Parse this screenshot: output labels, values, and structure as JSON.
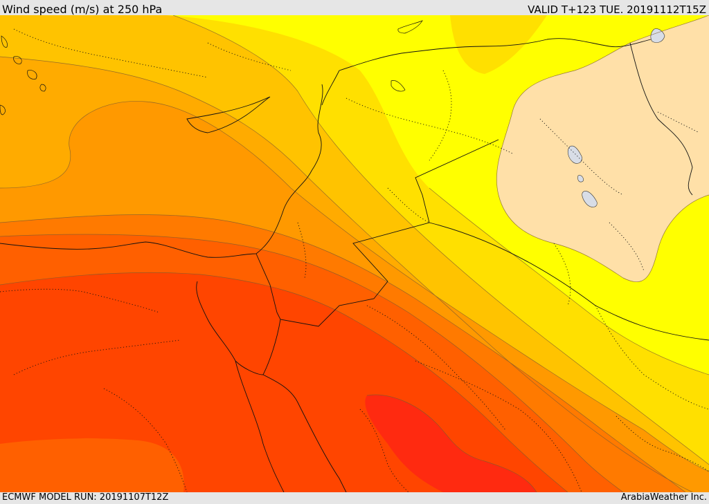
{
  "header": {
    "title": "Wind speed (m/s) at 250 hPa",
    "valid_time": "VALID T+123 TUE. 20191112T15Z"
  },
  "footer": {
    "model_run": "ECMWF MODEL RUN: 20191107T12Z",
    "credit": "ArabiaWeather Inc."
  },
  "map": {
    "fill_colors": {
      "calm_tan": "#ffe0a8",
      "bright_yellow": "#ffff00",
      "yellow": "#ffe000",
      "light_orange": "#ffc300",
      "orange": "#ffab00",
      "dark_orange": "#ff9900",
      "orange_red": "#ff7a00",
      "red_orange": "#ff6000",
      "red": "#ff4500",
      "deep_red": "#ff2a10",
      "lake": "#d8dde6"
    }
  }
}
